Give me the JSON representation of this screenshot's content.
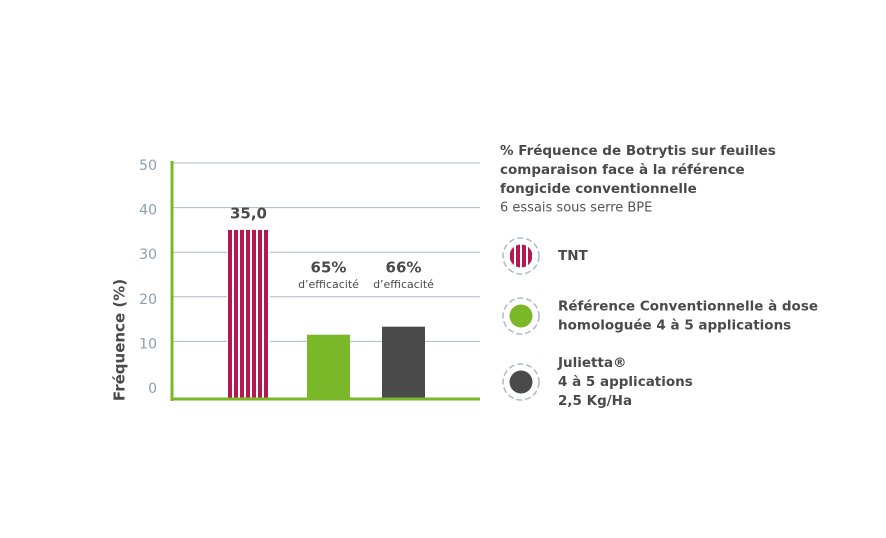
{
  "chart_data": {
    "type": "bar",
    "title_lines": [
      "% Fréquence de Botrytis sur feuilles",
      "comparaison face à la référence",
      "fongicide conventionnelle"
    ],
    "subtitle": "6 essais sous serre BPE",
    "ylabel": "Fréquence (%)",
    "categories": [
      null,
      null,
      null
    ],
    "values": [
      35,
      11.5,
      13.3
    ],
    "value_labels": [
      "35,0"
    ],
    "colors": [
      "#b5174f",
      "#7ab829",
      "#4a4a4a"
    ],
    "patterns": [
      "stripes",
      "solid",
      "solid"
    ],
    "annotations": [
      null,
      {
        "text": "65%",
        "sub": "d’efficacité"
      },
      {
        "text": "66%",
        "sub": "d’efficacité"
      }
    ],
    "legend": [
      {
        "lines": [
          "TNT"
        ]
      },
      {
        "lines": [
          "Référence Conventionnelle à dose",
          "homologuée 4 à 5 applications"
        ]
      },
      {
        "lines": [
          "Julietta®",
          "4 à 5 applications",
          "2,5 Kg/Ha"
        ]
      }
    ],
    "ylim": [
      0,
      50
    ],
    "yticks": [
      0,
      10,
      20,
      30,
      40,
      50
    ],
    "grid": true,
    "axis_color": "#7ab829"
  }
}
